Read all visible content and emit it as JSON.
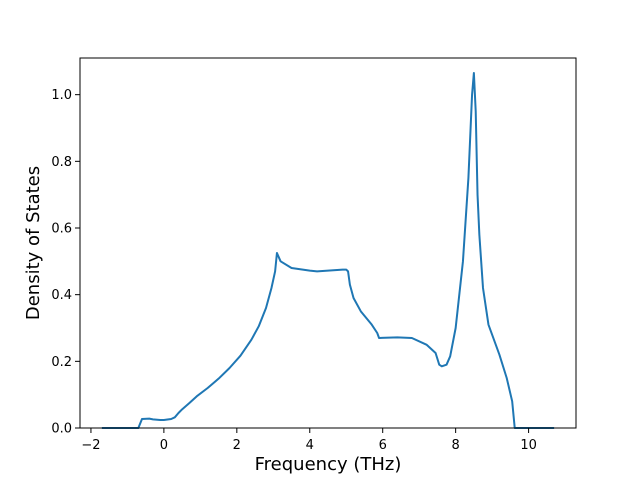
{
  "chart_data": {
    "type": "line",
    "title": "",
    "xlabel": "Frequency (THz)",
    "ylabel": "Density of States",
    "xlim": [
      -2.3,
      11.3
    ],
    "ylim": [
      0.0,
      1.11
    ],
    "grid": false,
    "legend": "none",
    "x_ticks": [
      {
        "value": -2,
        "label": "−2"
      },
      {
        "value": 0,
        "label": "0"
      },
      {
        "value": 2,
        "label": "2"
      },
      {
        "value": 4,
        "label": "4"
      },
      {
        "value": 6,
        "label": "6"
      },
      {
        "value": 8,
        "label": "8"
      },
      {
        "value": 10,
        "label": "10"
      }
    ],
    "y_ticks": [
      {
        "value": 0.0,
        "label": "0.0"
      },
      {
        "value": 0.2,
        "label": "0.2"
      },
      {
        "value": 0.4,
        "label": "0.4"
      },
      {
        "value": 0.6,
        "label": "0.6"
      },
      {
        "value": 0.8,
        "label": "0.8"
      },
      {
        "value": 1.0,
        "label": "1.0"
      }
    ],
    "series": [
      {
        "color": "#1f77b4",
        "x": [
          -1.7,
          -0.7,
          -0.6,
          -0.4,
          -0.3,
          -0.1,
          0.0,
          0.2,
          0.3,
          0.4,
          0.5,
          0.7,
          0.9,
          1.2,
          1.5,
          1.8,
          2.1,
          2.4,
          2.6,
          2.8,
          2.95,
          3.05,
          3.1,
          3.2,
          3.5,
          4.0,
          4.2,
          4.5,
          4.9,
          5.0,
          5.05,
          5.1,
          5.2,
          5.4,
          5.7,
          5.85,
          5.9,
          6.4,
          6.8,
          7.2,
          7.45,
          7.55,
          7.62,
          7.75,
          7.85,
          8.0,
          8.2,
          8.35,
          8.45,
          8.5,
          8.55,
          8.6,
          8.65,
          8.75,
          8.9,
          9.0,
          9.2,
          9.4,
          9.55,
          9.62,
          9.7,
          10.7
        ],
        "values": [
          0.0,
          0.0,
          0.027,
          0.028,
          0.026,
          0.024,
          0.024,
          0.027,
          0.032,
          0.045,
          0.056,
          0.075,
          0.095,
          0.12,
          0.148,
          0.18,
          0.217,
          0.265,
          0.305,
          0.36,
          0.42,
          0.47,
          0.525,
          0.5,
          0.48,
          0.472,
          0.47,
          0.472,
          0.475,
          0.475,
          0.47,
          0.43,
          0.39,
          0.35,
          0.31,
          0.285,
          0.27,
          0.272,
          0.27,
          0.25,
          0.225,
          0.19,
          0.185,
          0.19,
          0.215,
          0.3,
          0.5,
          0.75,
          1.0,
          1.065,
          0.95,
          0.7,
          0.58,
          0.42,
          0.31,
          0.28,
          0.22,
          0.15,
          0.08,
          0.0,
          0.0,
          0.0
        ]
      }
    ]
  }
}
